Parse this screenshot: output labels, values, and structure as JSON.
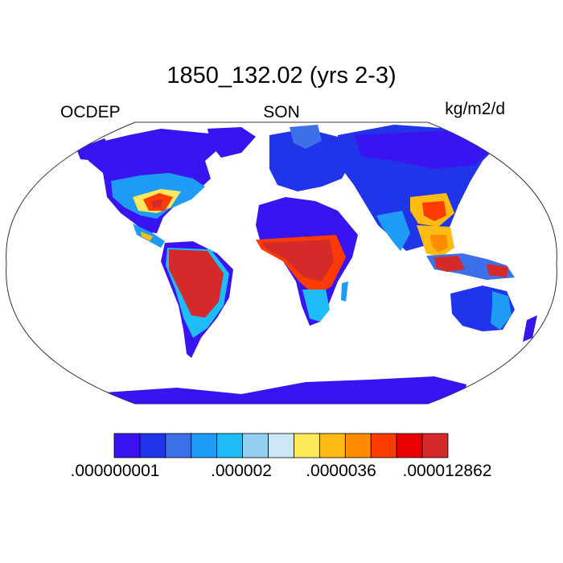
{
  "title": "1850_132.02 (yrs 2-3)",
  "variable": "OCDEP",
  "season": "SON",
  "units": "kg/m2/d",
  "colorbar": {
    "colors": [
      "#3a14f0",
      "#2034ea",
      "#3c70e8",
      "#1e9cf5",
      "#1ebdf7",
      "#92cff0",
      "#cce8f8",
      "#fde85a",
      "#fdbb14",
      "#fd8c00",
      "#fd3a00",
      "#e80000",
      "#d42a2a"
    ],
    "labels": [
      ".000000001",
      ".000002",
      ".0000036",
      ".000012862"
    ]
  },
  "map_colors": {
    "ocean": "#ffffff",
    "land_base": "#3a14f0",
    "outline": "#000000"
  }
}
